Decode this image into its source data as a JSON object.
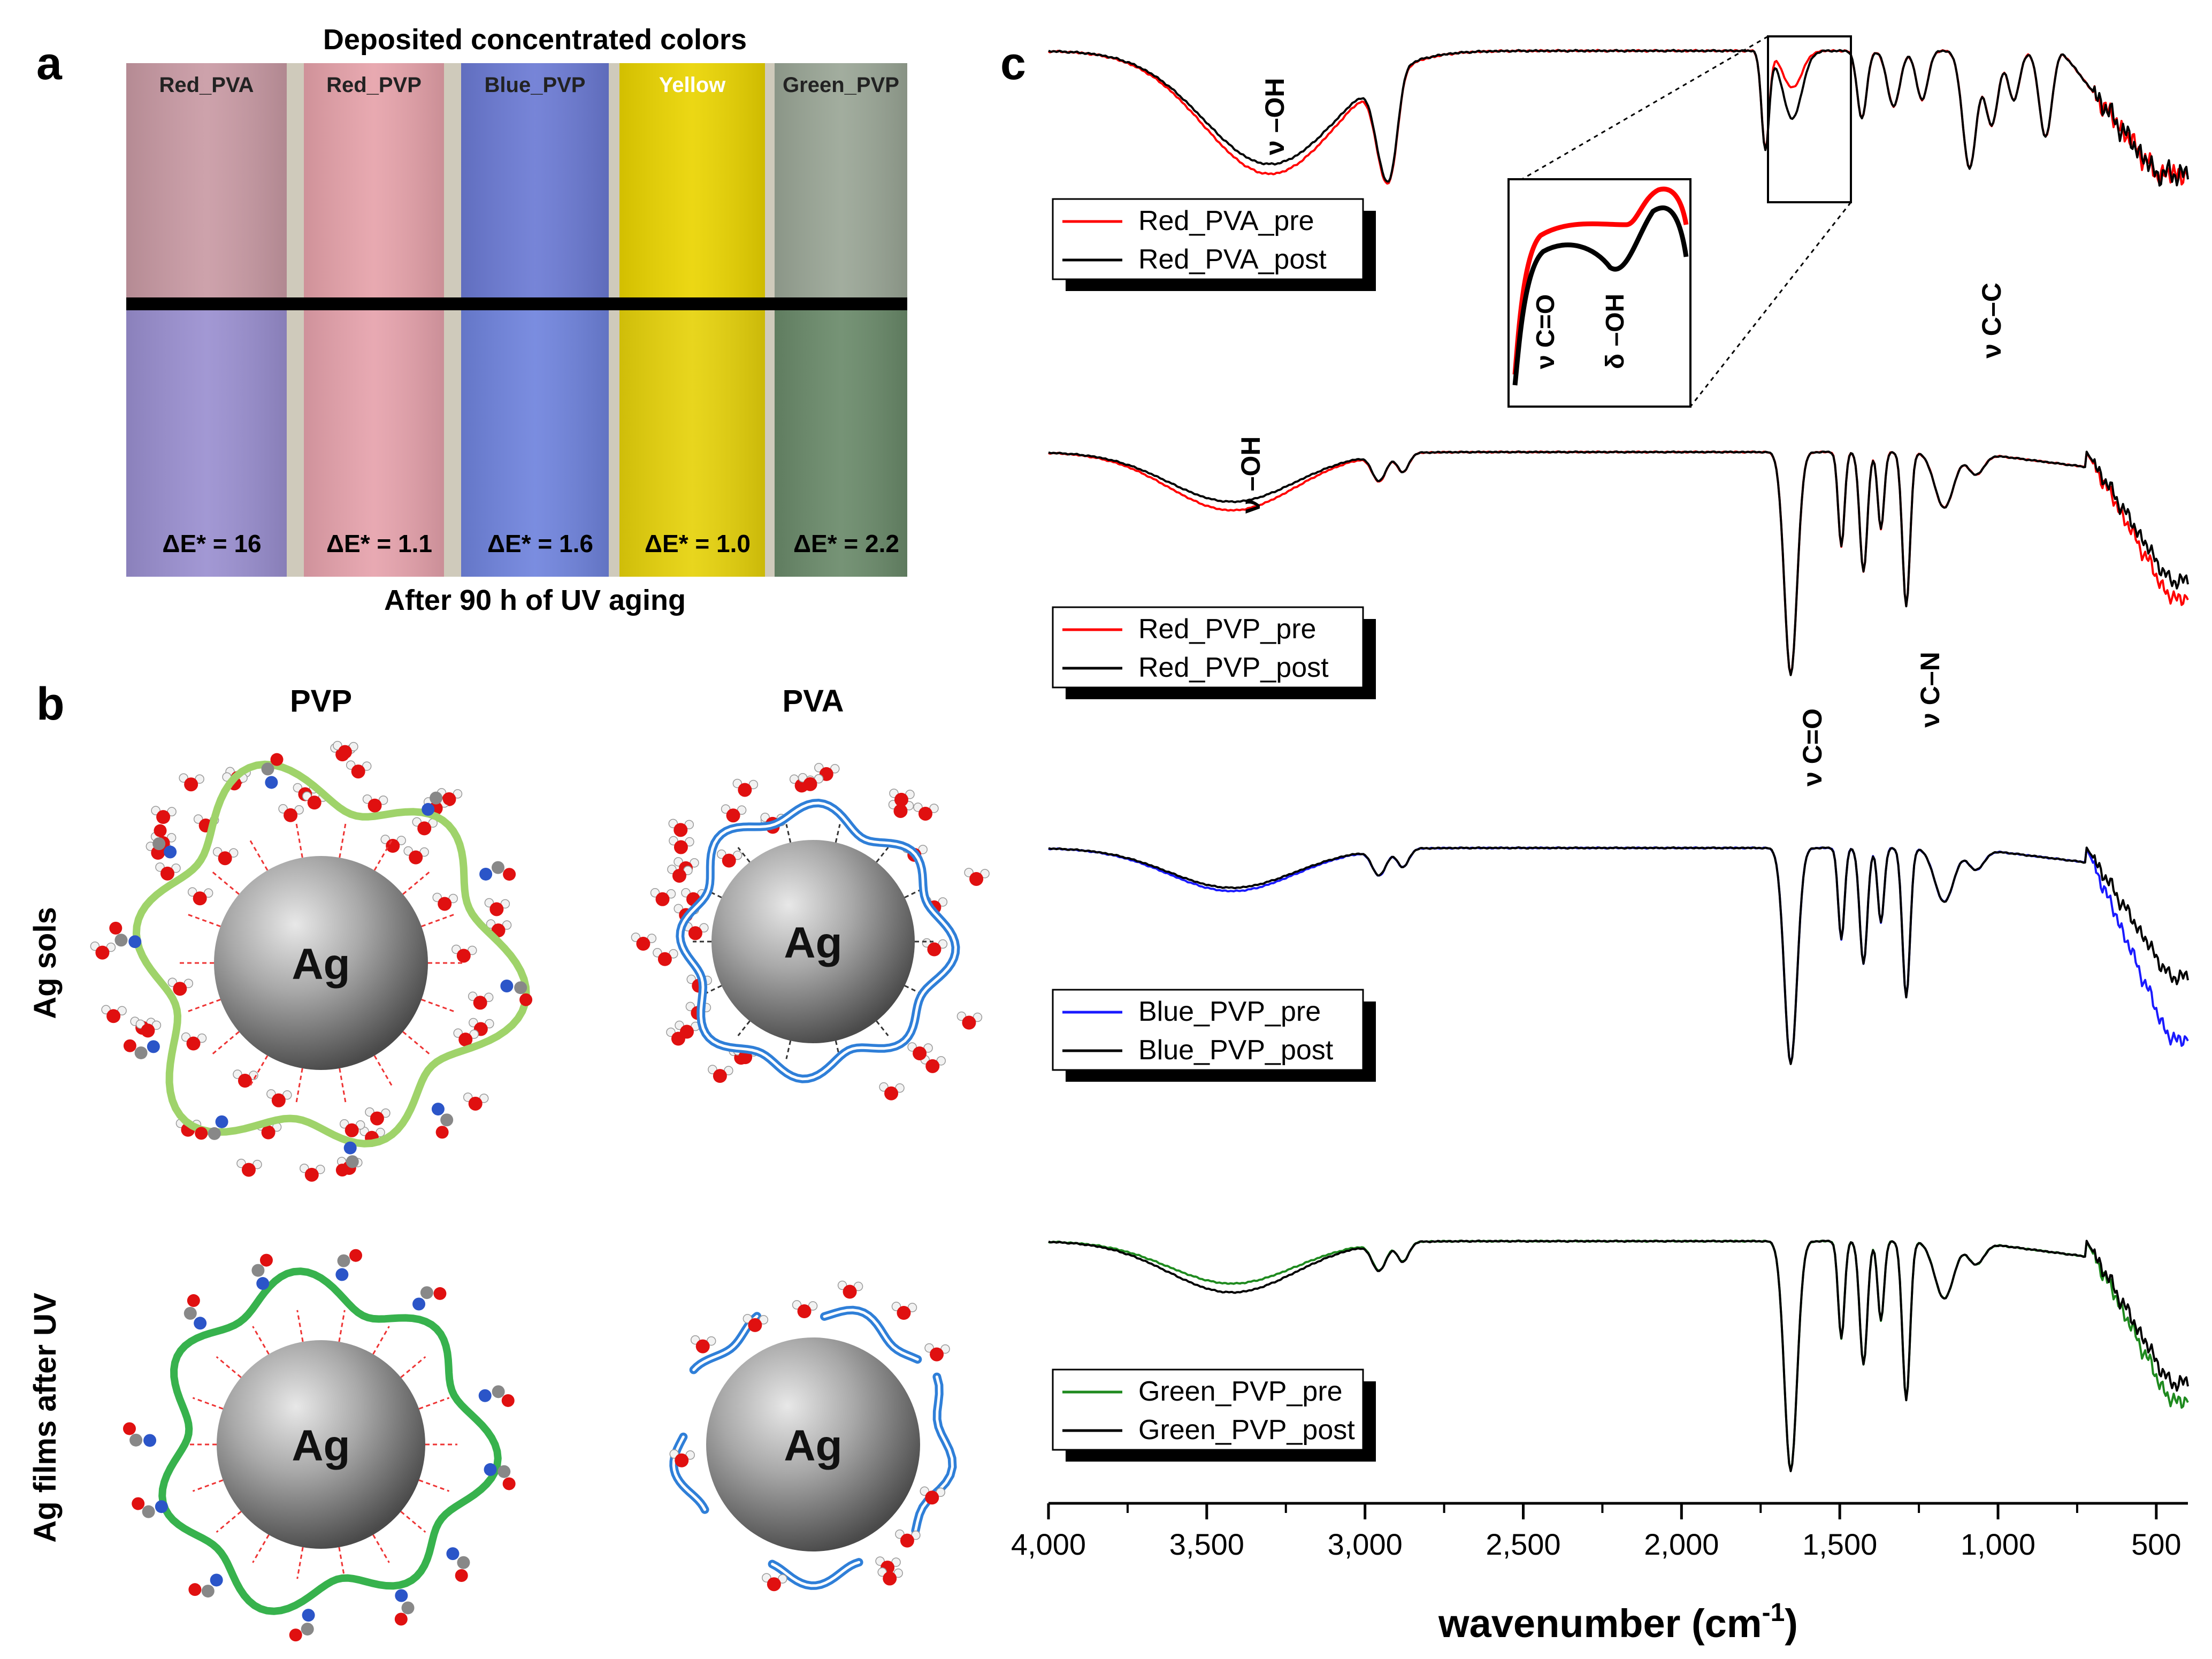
{
  "panel_a": {
    "label": "a",
    "title": "Deposited concentrated colors",
    "caption": "After 90 h of UV aging",
    "strips": [
      {
        "name": "Red_PVA",
        "delta_e": "ΔE* = 16",
        "top_color": "#c99aa4",
        "bottom_color": "#9a8fd0"
      },
      {
        "name": "Red_PVP",
        "delta_e": "ΔE* = 1.1",
        "top_color": "#e6a2aa",
        "bottom_color": "#e6a2ac"
      },
      {
        "name": "Blue_PVP",
        "delta_e": "ΔE* = 1.6",
        "top_color": "#6b7ad4",
        "bottom_color": "#6f83dd"
      },
      {
        "name": "Yellow",
        "delta_e": "ΔE* = 1.0",
        "top_color": "#ead400",
        "bottom_color": "#e6d20a"
      },
      {
        "name": "Green_PVP",
        "delta_e": "ΔE* = 2.2",
        "top_color": "#9aa696",
        "bottom_color": "#6a8a6a"
      }
    ]
  },
  "panel_b": {
    "label": "b",
    "col_headers": [
      "PVP",
      "PVA"
    ],
    "row_headers": [
      "Ag sols",
      "Ag films after UV"
    ],
    "particle_label": "Ag",
    "colors": {
      "pvp_sol": "#9fd36a",
      "pvp_film": "#37b24d",
      "pva": "#2f7fd8",
      "oxygen": "#e01010",
      "nitrogen": "#2b55c8"
    }
  },
  "panel_c": {
    "label": "c"
  },
  "chart_data": {
    "type": "line",
    "description": "Stacked FTIR spectra (offset), transmittance-like, pre vs post UV aging",
    "xlabel": "wavenumber (cm",
    "xlabel_sup": "-1",
    "xlabel_close": ")",
    "xlim": [
      4000,
      400
    ],
    "xticks": [
      "4,000",
      "3,500",
      "3,000",
      "2,500",
      "2,000",
      "1,500",
      "1,000",
      "500"
    ],
    "xtick_values": [
      4000,
      3500,
      3000,
      2500,
      2000,
      1500,
      1000,
      500
    ],
    "panels": [
      {
        "series": [
          {
            "name": "Red_PVA_pre",
            "color": "#ff0000"
          },
          {
            "name": "Red_PVA_post",
            "color": "#000000"
          }
        ],
        "annotations": [
          "ν –OH",
          "ν C–C"
        ],
        "inset_annotations": [
          "ν C=O",
          "δ –OH"
        ]
      },
      {
        "series": [
          {
            "name": "Red_PVP_pre",
            "color": "#ff0000"
          },
          {
            "name": "Red_PVP_post",
            "color": "#000000"
          }
        ],
        "annotations": [
          "ν –OH",
          "ν C=O",
          "ν C–N"
        ]
      },
      {
        "series": [
          {
            "name": "Blue_PVP_pre",
            "color": "#1a1aff"
          },
          {
            "name": "Blue_PVP_post",
            "color": "#000000"
          }
        ]
      },
      {
        "series": [
          {
            "name": "Green_PVP_pre",
            "color": "#1e8a1e"
          },
          {
            "name": "Green_PVP_post",
            "color": "#000000"
          }
        ]
      }
    ]
  }
}
